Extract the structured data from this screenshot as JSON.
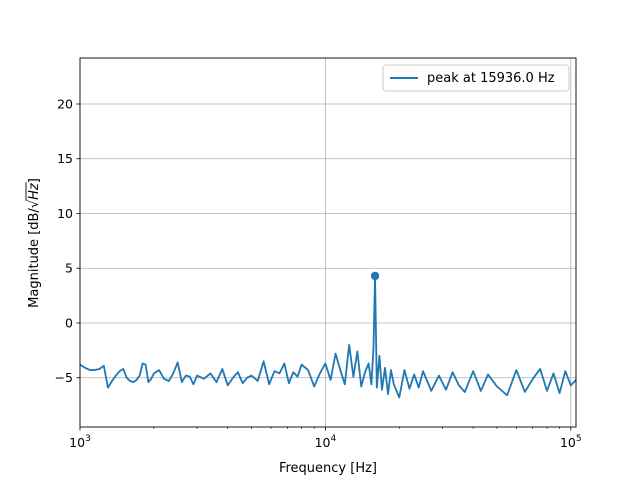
{
  "chart_data": {
    "type": "line",
    "title": "",
    "xlabel": "Frequency [Hz]",
    "ylabel_prefix": "Magnitude [dB/",
    "ylabel_sqrt_symbol": "√",
    "ylabel_radicand": "Hz",
    "ylabel_suffix": "]",
    "x_scale": "log",
    "xlim": [
      1000,
      105000
    ],
    "ylim": [
      -9.5,
      24.2
    ],
    "grid": true,
    "legend_position": "top-right",
    "x_ticks": [
      {
        "value": 1000,
        "base": "10",
        "exp": "3"
      },
      {
        "value": 10000,
        "base": "10",
        "exp": "4"
      },
      {
        "value": 100000,
        "base": "10",
        "exp": "5"
      }
    ],
    "y_ticks": [
      {
        "value": -5,
        "label": "−5"
      },
      {
        "value": 0,
        "label": "0"
      },
      {
        "value": 5,
        "label": "5"
      },
      {
        "value": 10,
        "label": "10"
      },
      {
        "value": 15,
        "label": "15"
      },
      {
        "value": 20,
        "label": "20"
      }
    ],
    "series": [
      {
        "name": "peak at 15936.0 Hz",
        "color": "#1f77b4",
        "peak": {
          "x": 15936.0,
          "y": 4.3
        },
        "x": [
          1000,
          1050,
          1100,
          1150,
          1200,
          1250,
          1300,
          1350,
          1400,
          1450,
          1500,
          1550,
          1600,
          1650,
          1700,
          1750,
          1800,
          1850,
          1900,
          1950,
          2000,
          2100,
          2200,
          2300,
          2400,
          2500,
          2600,
          2700,
          2800,
          2900,
          3000,
          3200,
          3400,
          3600,
          3800,
          4000,
          4200,
          4400,
          4600,
          4800,
          5000,
          5300,
          5600,
          5900,
          6200,
          6500,
          6800,
          7100,
          7400,
          7700,
          8000,
          8500,
          9000,
          9500,
          10000,
          10500,
          11000,
          11500,
          12000,
          12500,
          13000,
          13500,
          14000,
          14500,
          15000,
          15400,
          15700,
          15936,
          16200,
          16600,
          17000,
          17500,
          18000,
          18500,
          19000,
          20000,
          21000,
          22000,
          23000,
          24000,
          25000,
          27000,
          29000,
          31000,
          33000,
          35000,
          37000,
          40000,
          43000,
          46000,
          50000,
          55000,
          60000,
          65000,
          70000,
          75000,
          80000,
          85000,
          90000,
          95000,
          100000,
          105000
        ],
        "y": [
          -3.8,
          -4.1,
          -4.3,
          -4.3,
          -4.2,
          -3.9,
          -5.9,
          -5.3,
          -4.8,
          -4.4,
          -4.2,
          -5.0,
          -5.3,
          -5.4,
          -5.2,
          -4.8,
          -3.7,
          -3.8,
          -5.4,
          -5.1,
          -4.6,
          -4.3,
          -5.1,
          -5.3,
          -4.6,
          -3.6,
          -5.4,
          -4.8,
          -4.9,
          -5.6,
          -4.8,
          -5.1,
          -4.6,
          -5.4,
          -4.2,
          -5.7,
          -5.0,
          -4.5,
          -5.5,
          -5.0,
          -4.8,
          -5.3,
          -3.5,
          -5.6,
          -4.4,
          -4.6,
          -3.7,
          -5.5,
          -4.5,
          -4.9,
          -3.8,
          -4.3,
          -5.8,
          -4.6,
          -3.7,
          -5.2,
          -2.8,
          -4.3,
          -5.6,
          -2.0,
          -4.9,
          -2.6,
          -5.8,
          -4.5,
          -3.7,
          -5.6,
          -2.3,
          4.3,
          -5.9,
          -3.0,
          -6.1,
          -4.1,
          -6.5,
          -4.3,
          -5.6,
          -6.8,
          -4.3,
          -6.0,
          -4.7,
          -5.9,
          -4.4,
          -6.2,
          -4.8,
          -6.1,
          -4.5,
          -5.7,
          -6.3,
          -4.4,
          -6.2,
          -4.7,
          -5.8,
          -6.6,
          -4.3,
          -6.3,
          -5.1,
          -4.2,
          -6.2,
          -4.6,
          -6.4,
          -4.4,
          -5.7,
          -5.2
        ]
      }
    ]
  }
}
